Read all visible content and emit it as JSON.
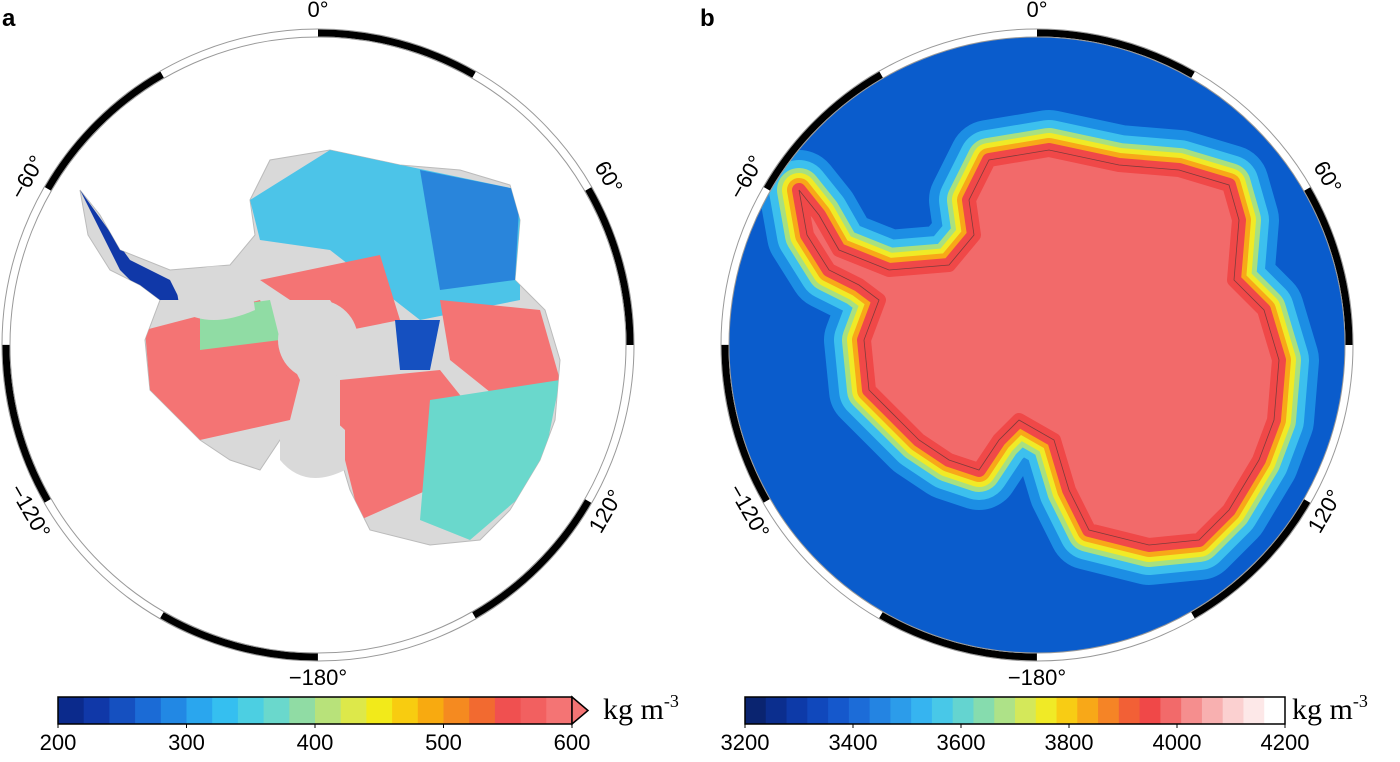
{
  "panels": [
    {
      "label": "a",
      "longitudes": [
        {
          "value": 0,
          "label": "0°"
        },
        {
          "value": 60,
          "label": "60°"
        },
        {
          "value": 120,
          "label": "120°"
        },
        {
          "value": -180,
          "label": "−180°"
        },
        {
          "value": -120,
          "label": "−120°"
        },
        {
          "value": -60,
          "label": "−60°"
        }
      ],
      "colorbar": {
        "unit": "kg m",
        "unit_exponent": "-3",
        "lim": [
          200,
          600
        ],
        "ticks": [
          200,
          300,
          400,
          500,
          600
        ],
        "extend_max": true,
        "colors": [
          "#0b2a8c",
          "#1038a8",
          "#1550c0",
          "#1b6bd6",
          "#2288e4",
          "#2aa6ee",
          "#35bff0",
          "#4ccfe2",
          "#6ad8cc",
          "#90dca4",
          "#b8e27a",
          "#dde84a",
          "#f2ea1a",
          "#f8cc10",
          "#f8aa10",
          "#f58a20",
          "#f26a30",
          "#f05050",
          "#f26060",
          "#f47474"
        ]
      }
    },
    {
      "label": "b",
      "longitudes": [
        {
          "value": 0,
          "label": "0°"
        },
        {
          "value": 60,
          "label": "60°"
        },
        {
          "value": 120,
          "label": "120°"
        },
        {
          "value": -180,
          "label": "−180°"
        },
        {
          "value": -120,
          "label": "−120°"
        },
        {
          "value": -60,
          "label": "−60°"
        }
      ],
      "colorbar": {
        "unit": "kg m",
        "unit_exponent": "-3",
        "lim": [
          3200,
          4200
        ],
        "ticks": [
          3200,
          3400,
          3600,
          3800,
          4000,
          4200
        ],
        "extend_max": false,
        "colors": [
          "#0a2470",
          "#0b2e8e",
          "#0d3aa8",
          "#1048bc",
          "#1558cc",
          "#1c6cd8",
          "#2484e2",
          "#2c9cea",
          "#36b4f0",
          "#48c8e8",
          "#64d4d0",
          "#86dcae",
          "#aee288",
          "#d4e85a",
          "#f0ea26",
          "#f8cc14",
          "#f8a818",
          "#f58426",
          "#f26036",
          "#f04848",
          "#f26a6a",
          "#f58e8e",
          "#f8b0b0",
          "#fbd0d0",
          "#fde8e8",
          "#ffffff"
        ]
      }
    }
  ]
}
